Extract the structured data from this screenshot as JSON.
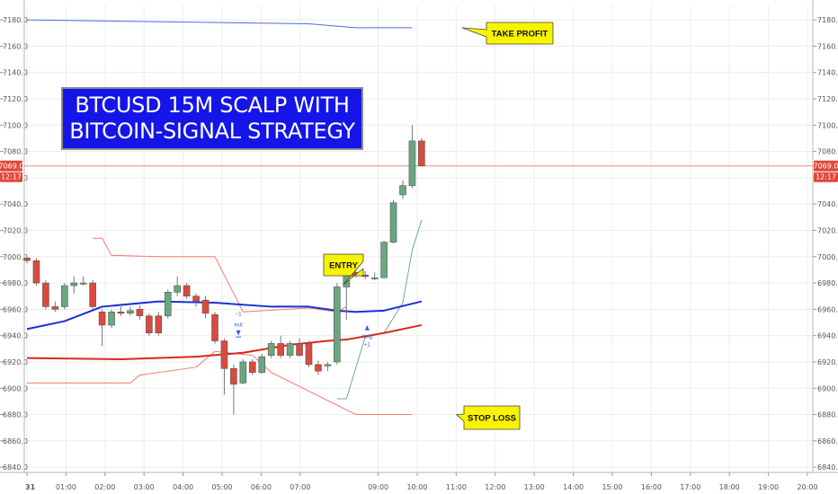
{
  "chart_data": {
    "type": "candlestick",
    "title_line1": "BTCUSD 15M SCALP WITH",
    "title_line2": "BITCOIN-SIGNAL STRATEGY",
    "x_ticks": [
      "31",
      "01:00",
      "02:00",
      "03:00",
      "04:00",
      "05:00",
      "06:00",
      "07:00",
      "09:00",
      "10:00",
      "11:00",
      "12:00",
      "13:00",
      "14:00",
      "15:00",
      "16:00",
      "17:00",
      "18:00",
      "19:00",
      "20:00"
    ],
    "y_ticks": [
      "7180.0",
      "7160.0",
      "7140.0",
      "7120.0",
      "7100.0",
      "7080.0",
      "7060.0",
      "7040.0",
      "7020.0",
      "7000.0",
      "6980.0",
      "6960.0",
      "6940.0",
      "6920.0",
      "6900.0",
      "6880.0",
      "6860.0",
      "6840.0"
    ],
    "ylim": [
      6836,
      7191
    ],
    "x_range": [
      0,
      92
    ],
    "current_price": 7069.0,
    "current_price_label": "7069.0",
    "countdown_label": "12:17",
    "candles": [
      {
        "x": 0,
        "o": 6999,
        "h": 7000,
        "l": 6995,
        "c": 6997
      },
      {
        "x": 1,
        "o": 6997,
        "h": 6999,
        "l": 6978,
        "c": 6980
      },
      {
        "x": 2,
        "o": 6980,
        "h": 6982,
        "l": 6960,
        "c": 6962
      },
      {
        "x": 3,
        "o": 6962,
        "h": 6966,
        "l": 6958,
        "c": 6960
      },
      {
        "x": 4,
        "o": 6962,
        "h": 6980,
        "l": 6960,
        "c": 6978
      },
      {
        "x": 5,
        "o": 6978,
        "h": 6985,
        "l": 6972,
        "c": 6980
      },
      {
        "x": 6,
        "o": 6980,
        "h": 6985,
        "l": 6978,
        "c": 6980
      },
      {
        "x": 7,
        "o": 6980,
        "h": 6982,
        "l": 6960,
        "c": 6962
      },
      {
        "x": 8,
        "o": 6958,
        "h": 6960,
        "l": 6932,
        "c": 6948
      },
      {
        "x": 9,
        "o": 6948,
        "h": 6960,
        "l": 6946,
        "c": 6958
      },
      {
        "x": 10,
        "o": 6958,
        "h": 6962,
        "l": 6955,
        "c": 6957
      },
      {
        "x": 11,
        "o": 6957,
        "h": 6962,
        "l": 6955,
        "c": 6959
      },
      {
        "x": 12,
        "o": 6960,
        "h": 6963,
        "l": 6952,
        "c": 6955
      },
      {
        "x": 13,
        "o": 6955,
        "h": 6957,
        "l": 6940,
        "c": 6942
      },
      {
        "x": 14,
        "o": 6955,
        "h": 6958,
        "l": 6940,
        "c": 6942
      },
      {
        "x": 15,
        "o": 6955,
        "h": 6975,
        "l": 6953,
        "c": 6973
      },
      {
        "x": 16,
        "o": 6973,
        "h": 6985,
        "l": 6970,
        "c": 6978
      },
      {
        "x": 17,
        "o": 6978,
        "h": 6980,
        "l": 6968,
        "c": 6970
      },
      {
        "x": 18,
        "o": 6970,
        "h": 6972,
        "l": 6962,
        "c": 6966
      },
      {
        "x": 19,
        "o": 6967,
        "h": 6970,
        "l": 6953,
        "c": 6957
      },
      {
        "x": 20,
        "o": 6956,
        "h": 6958,
        "l": 6934,
        "c": 6936
      },
      {
        "x": 21,
        "o": 6936,
        "h": 6938,
        "l": 6895,
        "c": 6915
      },
      {
        "x": 22,
        "o": 6915,
        "h": 6918,
        "l": 6880,
        "c": 6903
      },
      {
        "x": 23,
        "o": 6904,
        "h": 6922,
        "l": 6903,
        "c": 6920
      },
      {
        "x": 24,
        "o": 6920,
        "h": 6922,
        "l": 6910,
        "c": 6912
      },
      {
        "x": 25,
        "o": 6912,
        "h": 6926,
        "l": 6911,
        "c": 6924
      },
      {
        "x": 26,
        "o": 6925,
        "h": 6936,
        "l": 6923,
        "c": 6934
      },
      {
        "x": 27,
        "o": 6934,
        "h": 6940,
        "l": 6923,
        "c": 6925
      },
      {
        "x": 28,
        "o": 6925,
        "h": 6936,
        "l": 6923,
        "c": 6934
      },
      {
        "x": 29,
        "o": 6934,
        "h": 6938,
        "l": 6924,
        "c": 6925
      },
      {
        "x": 30,
        "o": 6934,
        "h": 6936,
        "l": 6916,
        "c": 6918
      },
      {
        "x": 31,
        "o": 6918,
        "h": 6921,
        "l": 6910,
        "c": 6913
      },
      {
        "x": 32,
        "o": 6917,
        "h": 6920,
        "l": 6913,
        "c": 6918
      },
      {
        "x": 33,
        "o": 6920,
        "h": 6980,
        "l": 6918,
        "c": 6977
      },
      {
        "x": 34,
        "o": 6977,
        "h": 6992,
        "l": 6952,
        "c": 6990
      },
      {
        "x": 35,
        "o": 6988,
        "h": 6990,
        "l": 6984,
        "c": 6986
      },
      {
        "x": 36,
        "o": 6986,
        "h": 6989,
        "l": 6983,
        "c": 6985
      },
      {
        "x": 37,
        "o": 6984,
        "h": 6988,
        "l": 6982,
        "c": 6984
      },
      {
        "x": 38,
        "o": 6984,
        "h": 7012,
        "l": 6984,
        "c": 7011
      },
      {
        "x": 39,
        "o": 7011,
        "h": 7043,
        "l": 7010,
        "c": 7041
      },
      {
        "x": 40,
        "o": 7047,
        "h": 7058,
        "l": 7044,
        "c": 7054
      },
      {
        "x": 41,
        "o": 7054,
        "h": 7100,
        "l": 7052,
        "c": 7088
      },
      {
        "x": 42,
        "o": 7088,
        "h": 7090,
        "l": 7069,
        "c": 7069
      }
    ],
    "ema_blue": [
      [
        0,
        6945
      ],
      [
        4,
        6951
      ],
      [
        8,
        6962
      ],
      [
        14,
        6966
      ],
      [
        20,
        6965
      ],
      [
        26,
        6962
      ],
      [
        30,
        6962
      ],
      [
        33,
        6959
      ],
      [
        35,
        6958
      ],
      [
        38,
        6959
      ],
      [
        42,
        6966
      ]
    ],
    "ema_red": [
      [
        0,
        6923
      ],
      [
        10,
        6922
      ],
      [
        18,
        6924
      ],
      [
        23,
        6927
      ],
      [
        28,
        6933
      ],
      [
        32,
        6936
      ],
      [
        34,
        6937
      ],
      [
        38,
        6942
      ],
      [
        42,
        6948
      ]
    ],
    "upper_band": [
      [
        7,
        7014
      ],
      [
        8,
        7014
      ],
      [
        9,
        7001
      ],
      [
        14,
        7000
      ],
      [
        20,
        7000
      ],
      [
        23,
        6958
      ],
      [
        30,
        6961
      ],
      [
        33,
        6958
      ],
      [
        34,
        6962
      ]
    ],
    "lower_band": [
      [
        0,
        6904
      ],
      [
        11,
        6904
      ],
      [
        12,
        6910
      ],
      [
        18,
        6916
      ],
      [
        20,
        6928
      ],
      [
        24,
        6925
      ],
      [
        26,
        6912
      ],
      [
        35,
        6880
      ],
      [
        41,
        6880
      ]
    ],
    "trail_green": [
      [
        33,
        6892
      ],
      [
        34,
        6892
      ],
      [
        36,
        6939
      ],
      [
        38,
        6942
      ],
      [
        40,
        6965
      ],
      [
        41,
        7005
      ],
      [
        42,
        7028
      ]
    ],
    "take_profit_line": [
      [
        0,
        7180
      ],
      [
        30,
        7177
      ],
      [
        35,
        7174
      ],
      [
        41,
        7174
      ]
    ],
    "annotations": {
      "take_profit": "TAKE PROFIT",
      "entry": "ENTRY",
      "stop_loss": "STOP LOSS",
      "exit_signal": "exit",
      "exit_qty": "−1",
      "long_signal": "long",
      "long_qty": "+1"
    },
    "colors": {
      "up_candle": "#6aa781",
      "down_candle": "#db4a3c",
      "ema_blue": "#1b2fd8",
      "ema_red": "#d42a1e",
      "band": "#f07b70",
      "trail": "#6fae80",
      "take_profit_line": "#4d68e8",
      "signal_blue": "#3a5ae8",
      "price_line": "#f08a80",
      "price_tag": "#e0483a",
      "callout_fill": "#f8f400",
      "title_box": "#1515e8"
    }
  }
}
